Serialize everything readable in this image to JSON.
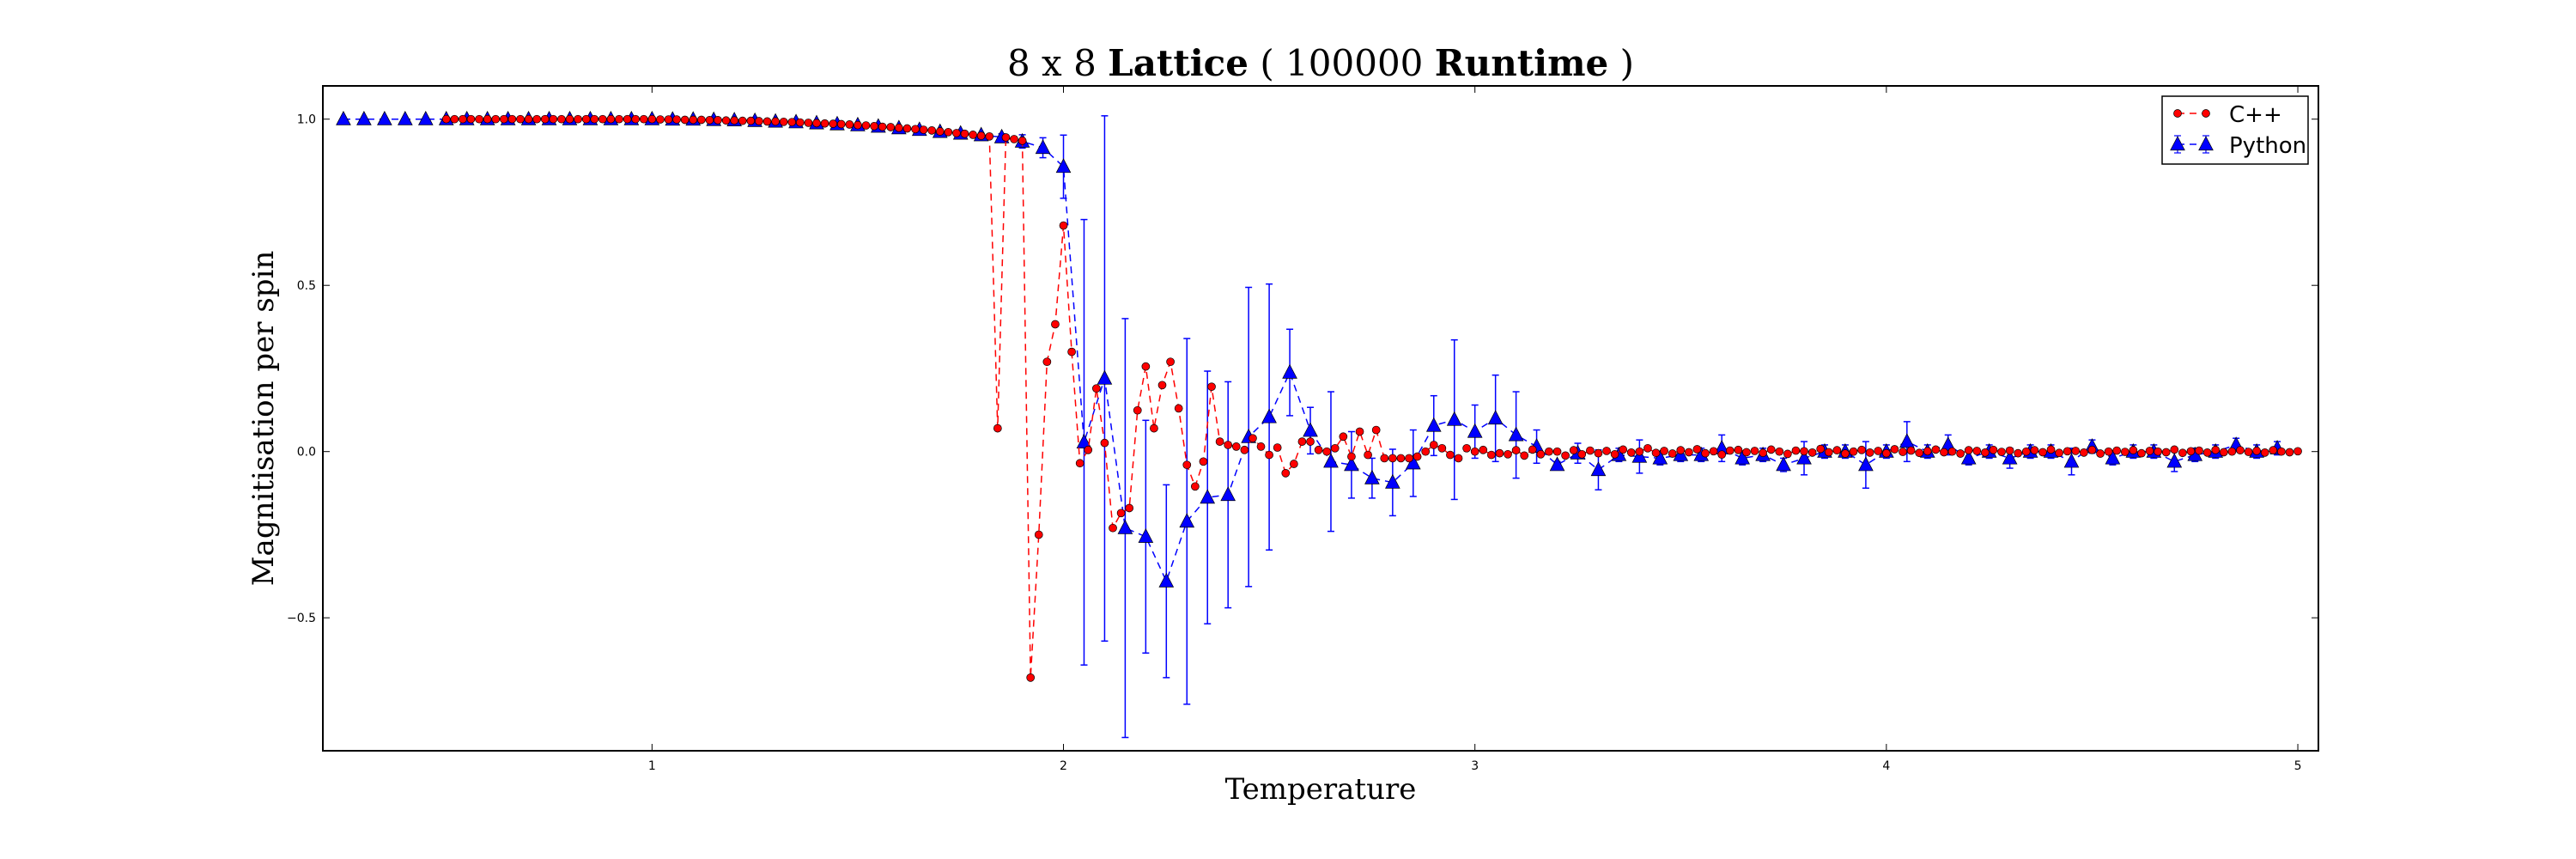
{
  "chart_data": {
    "type": "line",
    "title_parts": [
      {
        "text": "8 x 8 ",
        "bold": false
      },
      {
        "text": "Lattice",
        "bold": true
      },
      {
        "text": " ( 100000 ",
        "bold": false
      },
      {
        "text": "Runtime",
        "bold": true
      },
      {
        "text": " )",
        "bold": false
      }
    ],
    "title": "8 x 8 Lattice ( 100000 Runtime )",
    "xlabel": "Temperature",
    "ylabel": "Magnitisation per spin",
    "xlim": [
      0.2,
      5.05
    ],
    "ylim": [
      -0.9,
      1.1
    ],
    "xticks": [
      1,
      2,
      3,
      4,
      5
    ],
    "xtick_labels": [
      "1",
      "2",
      "3",
      "4",
      "5"
    ],
    "yticks": [
      1.0,
      0.5,
      0.0,
      -0.5
    ],
    "ytick_labels": [
      "1.0",
      "0.5",
      "0.0",
      "−0.5"
    ],
    "grid": false,
    "legend_position": "top-right",
    "series": [
      {
        "name": "Python",
        "color": "#0000ff",
        "marker": "triangle",
        "linestyle": "dashed",
        "x_start": 0.25,
        "x_step": 0.05,
        "values": [
          1,
          1,
          1,
          1,
          1,
          1,
          1,
          1,
          1,
          1,
          1,
          1,
          1,
          1,
          1,
          1,
          0.999,
          0.999,
          0.998,
          0.997,
          0.995,
          0.993,
          0.991,
          0.988,
          0.985,
          0.982,
          0.978,
          0.973,
          0.968,
          0.962,
          0.957,
          0.952,
          0.946,
          0.933,
          0.914,
          0.857,
          0.028,
          0.22,
          -0.23,
          -0.256,
          -0.39,
          -0.21,
          -0.138,
          -0.13,
          0.044,
          0.104,
          0.238,
          0.063,
          -0.03,
          -0.04,
          -0.08,
          -0.093,
          -0.035,
          0.078,
          0.096,
          0.06,
          0.1,
          0.05,
          0.015,
          -0.04,
          -0.005,
          -0.055,
          -0.01,
          -0.015,
          -0.02,
          -0.01,
          -0.01,
          0.01,
          -0.02,
          -0.01,
          -0.04,
          -0.02,
          0,
          0,
          -0.04,
          0,
          0.03,
          0,
          0.02,
          -0.02,
          0,
          -0.02,
          0,
          0,
          -0.03,
          0.015,
          -0.02,
          0,
          0,
          -0.03,
          -0.01,
          0,
          0.02,
          0,
          0.01
        ],
        "errors": [
          0,
          0,
          0,
          0,
          0,
          0,
          0,
          0,
          0,
          0,
          0,
          0,
          0,
          0,
          0,
          0,
          0,
          0,
          0,
          0,
          0,
          0,
          0,
          0,
          0,
          0,
          0.005,
          0.005,
          0.005,
          0.005,
          0.005,
          0.005,
          0.01,
          0.02,
          0.03,
          0.095,
          0.67,
          0.79,
          0.63,
          0.35,
          0.29,
          0.55,
          0.38,
          0.34,
          0.45,
          0.4,
          0.13,
          0.07,
          0.21,
          0.1,
          0.06,
          0.1,
          0.1,
          0.09,
          0.24,
          0.08,
          0.13,
          0.13,
          0.05,
          0.01,
          0.03,
          0.06,
          0.02,
          0.05,
          0.02,
          0.02,
          0.02,
          0.04,
          0.02,
          0.02,
          0.02,
          0.05,
          0.02,
          0.02,
          0.07,
          0.02,
          0.06,
          0.02,
          0.03,
          0.02,
          0.02,
          0.03,
          0.02,
          0.02,
          0.04,
          0.02,
          0.02,
          0.02,
          0.02,
          0.03,
          0.02,
          0.02,
          0.02,
          0.02,
          0.02
        ]
      },
      {
        "name": "C++",
        "color": "#ff0000",
        "marker": "circle",
        "linestyle": "dashed",
        "x_start": 0.5,
        "x_step": 0.02,
        "values": [
          1,
          1,
          1,
          1,
          1,
          1,
          1,
          1,
          1,
          1,
          1,
          1,
          1,
          1,
          1,
          1,
          1,
          1,
          1,
          1,
          1,
          1,
          1,
          1,
          1,
          1,
          0.999,
          0.999,
          0.999,
          0.998,
          0.998,
          0.998,
          0.997,
          0.997,
          0.996,
          0.996,
          0.995,
          0.995,
          0.994,
          0.993,
          0.993,
          0.992,
          0.991,
          0.99,
          0.989,
          0.988,
          0.987,
          0.986,
          0.985,
          0.984,
          0.982,
          0.981,
          0.979,
          0.977,
          0.976,
          0.974,
          0.972,
          0.97,
          0.968,
          0.966,
          0.963,
          0.961,
          0.958,
          0.956,
          0.953,
          0.95,
          0.948,
          0.07,
          0.945,
          0.94,
          0.935,
          -0.68,
          -0.25,
          0.27,
          0.383,
          0.68,
          0.3,
          -0.035,
          0.005,
          0.19,
          0.026,
          -0.23,
          -0.185,
          -0.17,
          0.124,
          0.256,
          0.07,
          0.2,
          0.27,
          0.13,
          -0.04,
          -0.105,
          -0.03,
          0.195,
          0.03,
          0.02,
          0.015,
          0.005,
          0.04,
          0.015,
          -0.01,
          0.012,
          -0.065,
          -0.037,
          0.03,
          0.03,
          0.005,
          0.0,
          0.01,
          0.045,
          -0.015,
          0.06,
          -0.01,
          0.065,
          -0.02,
          -0.02,
          -0.02,
          -0.02,
          -0.015,
          0.0,
          0.02,
          0.01,
          -0.01,
          -0.02,
          0.01,
          0.0,
          0.005,
          -0.01,
          -0.005,
          -0.008,
          0.004,
          -0.012,
          0.006,
          -0.008,
          0.0,
          0.0,
          -0.012,
          0.004,
          -0.008,
          0.003,
          -0.005,
          0.002,
          -0.008,
          0.006,
          -0.003,
          0.0,
          0.01,
          -0.004,
          0.002,
          -0.006,
          0.004,
          -0.002,
          0.007,
          -0.005,
          0.001,
          -0.009,
          0.003,
          0.005,
          -0.002,
          0.002,
          -0.004,
          0.006,
          0.0,
          -0.007,
          0.003,
          0.001,
          -0.003,
          0.008,
          -0.002,
          0.004,
          -0.006,
          0.0,
          0.005,
          -0.003,
          0.002,
          -0.005,
          0.007,
          -0.001,
          0.003,
          -0.004,
          0.001,
          0.006,
          -0.002,
          0.0,
          -0.006,
          0.004,
          0.002,
          -0.003,
          0.005,
          -0.001,
          0.003,
          -0.005,
          0.0,
          0.004,
          -0.002,
          0.006,
          -0.004,
          0.001,
          0.002,
          -0.003,
          0.005,
          -0.006,
          0.0,
          0.003,
          -0.001,
          0.004,
          -0.005,
          0.002,
          0.0,
          -0.002,
          0.006,
          -0.004,
          0.001,
          0.003,
          -0.003,
          0.005,
          -0.002,
          0.0,
          0.004,
          -0.001,
          0.002,
          -0.003,
          0.004,
          0.0,
          -0.002,
          0.001
        ]
      }
    ],
    "legend": [
      "C++",
      "Python"
    ]
  }
}
